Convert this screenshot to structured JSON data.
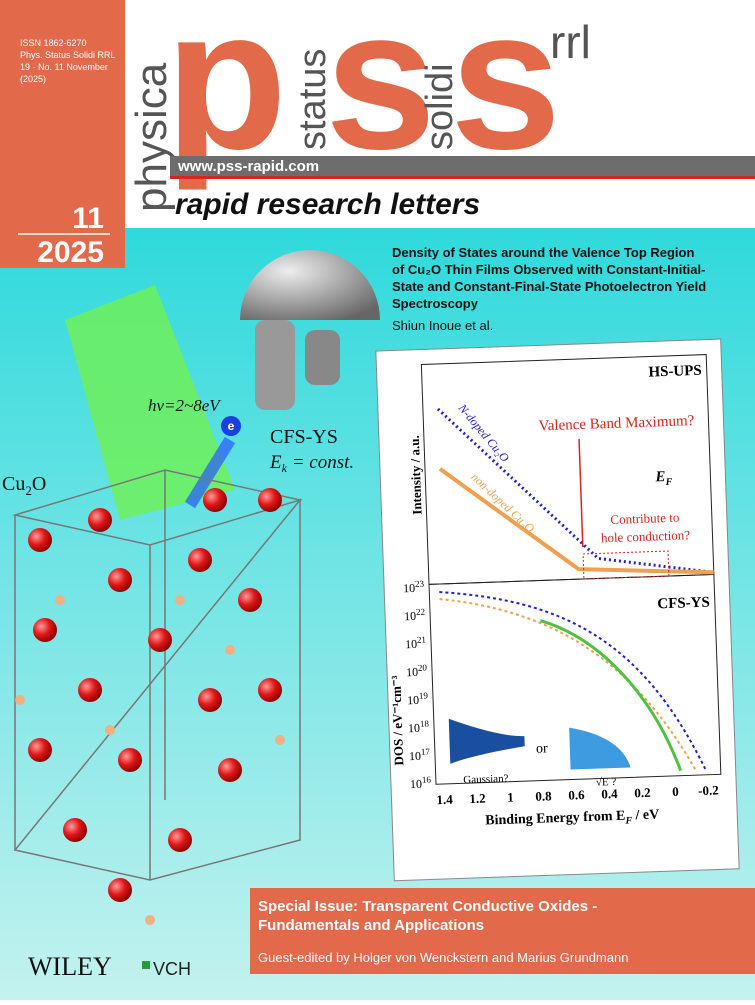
{
  "header": {
    "issn_lines": [
      "ISSN 1862-6270",
      "Phys. Status Solidi RRL",
      "19 · No. 11 November",
      "(2025)"
    ],
    "physica": "physica",
    "p": "p",
    "status": "status",
    "s1": "s",
    "solidi": "solidi",
    "s2": "s",
    "rrl": "rrl",
    "url": "www.pss-rapid.com",
    "subtitle": "rapid research letters",
    "issue": "11",
    "year": "2025"
  },
  "article": {
    "title_lines": [
      "Density of States around the Valence Top Region",
      "of Cu₂O Thin Films Observed with Constant-Initial-",
      "State and Constant-Final-State Photoelectron Yield",
      "Spectroscopy"
    ],
    "authors": "Shiun Inoue et al."
  },
  "figure": {
    "photon": "hν=2~8eV",
    "electron": "e",
    "method": "CFS-YS",
    "ek": "E",
    "ek_sub": "k",
    "ek_rest": " = const.",
    "material": "Cu",
    "material_sub": "2",
    "material_rest": "O"
  },
  "inset": {
    "top_label": "HS-UPS",
    "intensity_axis": "Intensity / a.u.",
    "n_doped": "N-doped Cu₂O",
    "non_doped": "non-doped Cu₂O",
    "vbm": "Valence Band Maximum?",
    "ef": "E",
    "ef_sub": "F",
    "contribute_lines": [
      "Contribute to",
      "hole conduction?"
    ],
    "bottom_label": "CFS-YS",
    "dos_axis": "DOS / eV⁻¹cm⁻³",
    "yticks": [
      {
        "base": "10",
        "exp": "23"
      },
      {
        "base": "10",
        "exp": "22"
      },
      {
        "base": "10",
        "exp": "21"
      },
      {
        "base": "10",
        "exp": "20"
      },
      {
        "base": "10",
        "exp": "19"
      },
      {
        "base": "10",
        "exp": "18"
      },
      {
        "base": "10",
        "exp": "17"
      },
      {
        "base": "10",
        "exp": "16"
      }
    ],
    "xticks": [
      "1.4",
      "1.2",
      "1",
      "0.8",
      "0.6",
      "0.4",
      "0.2",
      "0",
      "-0.2"
    ],
    "x_axis": "Binding Energy from E",
    "x_axis_sub": "F",
    "x_axis_rest": " / eV",
    "gaussian": "Gaussian?",
    "or": "or",
    "sqrt": "√E ?"
  },
  "special_issue": {
    "title_lines": [
      "Special Issue: Transparent Conductive Oxides -",
      "Fundamentals and Applications"
    ],
    "editors": "Guest-edited by Holger von Wenckstern and Marius Grundmann"
  },
  "publisher": {
    "wiley": "WILEY",
    "vch": "VCH"
  }
}
